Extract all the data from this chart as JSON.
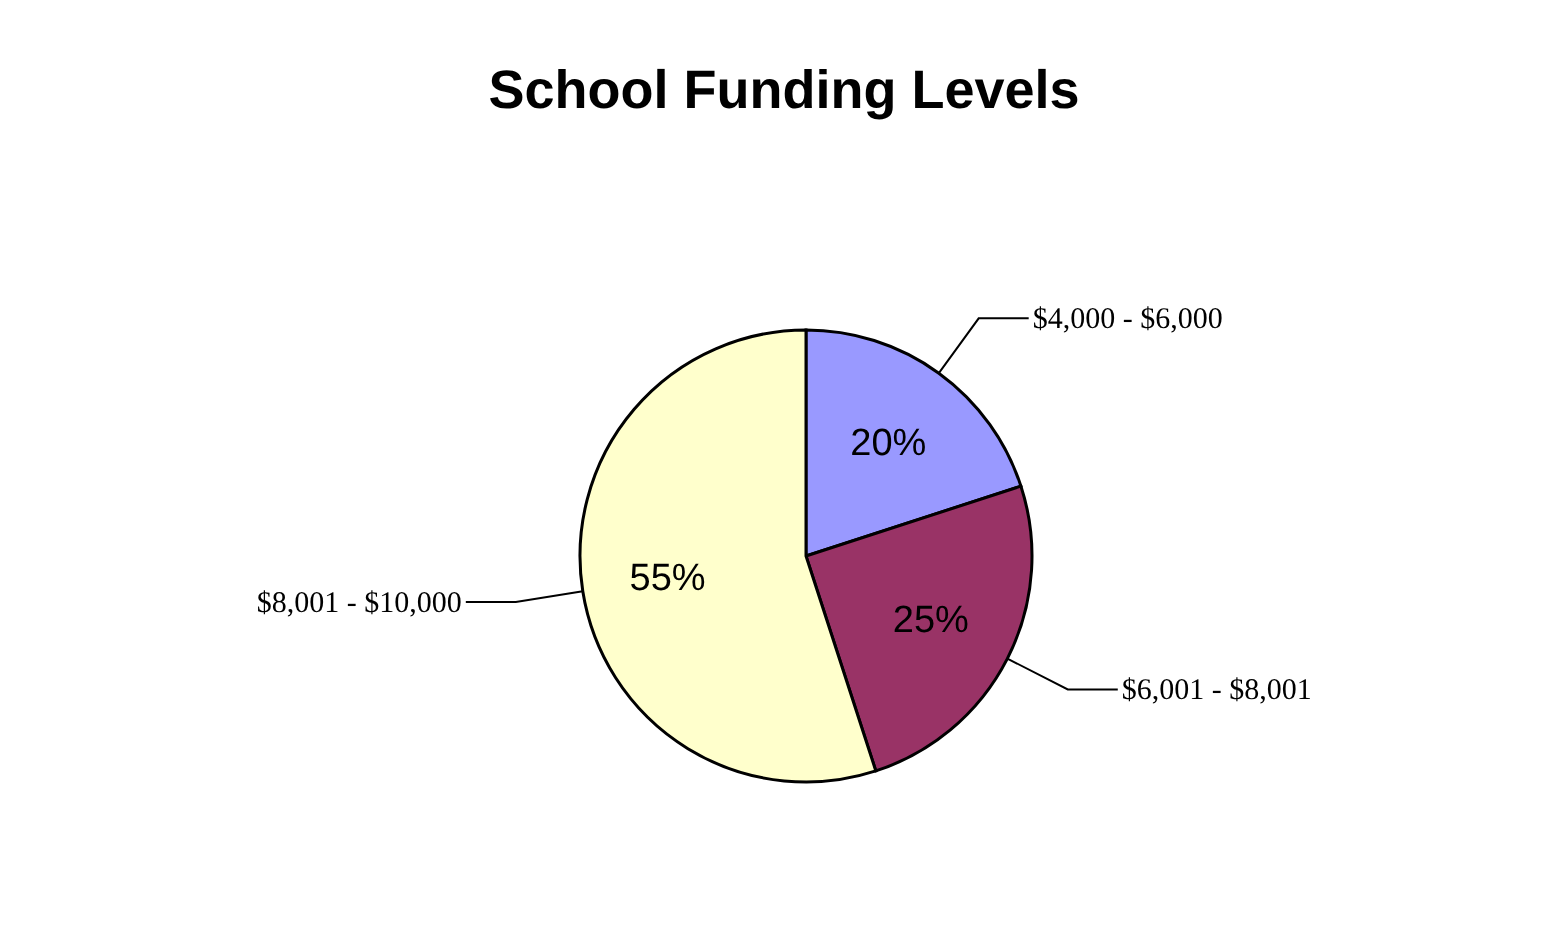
{
  "chart_data": {
    "type": "pie",
    "title": "School Funding Levels",
    "categories": [
      "$4,000 - $6,000",
      "$6,001 - $8,001",
      "$8,001 - $10,000"
    ],
    "values": [
      20,
      25,
      55
    ],
    "value_labels": [
      "20%",
      "25%",
      "55%"
    ],
    "colors": [
      "#9999ff",
      "#993366",
      "#ffffcc"
    ]
  }
}
